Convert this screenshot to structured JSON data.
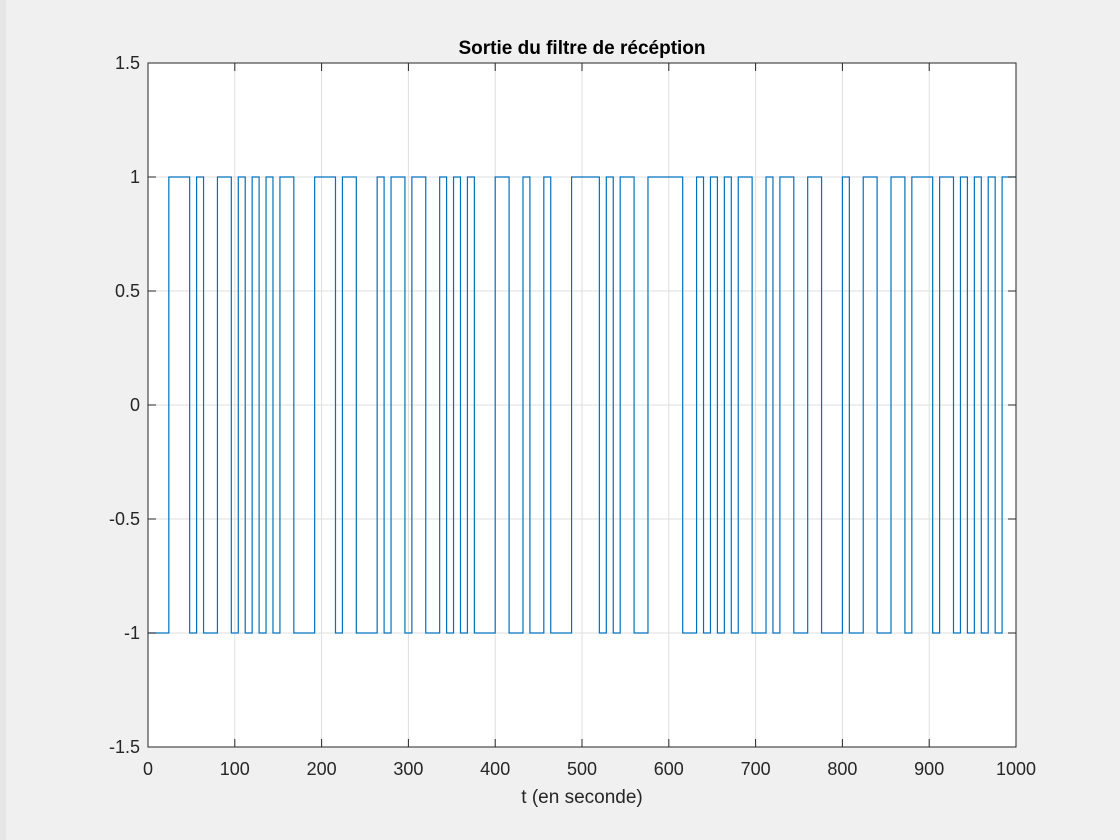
{
  "window": {
    "background": "#f0f0f0"
  },
  "chart_data": {
    "type": "line",
    "step": true,
    "title": "Sortie du filtre de récéption",
    "xlabel": "t (en seconde)",
    "ylabel": "",
    "xlim": [
      0,
      1000
    ],
    "ylim": [
      -1.5,
      1.5
    ],
    "xticks": [
      0,
      100,
      200,
      300,
      400,
      500,
      600,
      700,
      800,
      900,
      1000
    ],
    "yticks": [
      -1.5,
      -1,
      -0.5,
      0,
      0.5,
      1,
      1.5
    ],
    "xtick_labels": [
      "0",
      "100",
      "200",
      "300",
      "400",
      "500",
      "600",
      "700",
      "800",
      "900",
      "1000"
    ],
    "ytick_labels": [
      "-1.5",
      "-1",
      "-0.5",
      "0",
      "0.5",
      "1",
      "1.5"
    ],
    "grid": true,
    "line_color": "#0072bd",
    "series": [
      {
        "x": [
          0,
          24,
          24,
          48,
          48,
          56,
          56,
          64,
          64,
          80,
          80,
          96,
          96,
          104,
          104,
          112,
          112,
          120,
          120,
          128,
          128,
          136,
          136,
          144,
          144,
          152,
          152,
          168,
          168,
          192,
          192,
          216,
          216,
          224,
          224,
          240,
          240,
          264,
          264,
          272,
          272,
          280,
          280,
          296,
          296,
          304,
          304,
          320,
          320,
          336,
          336,
          344,
          344,
          352,
          352,
          360,
          360,
          368,
          368,
          376,
          376,
          400,
          400,
          416,
          416,
          432,
          432,
          440,
          440,
          456,
          456,
          464,
          464,
          488,
          488,
          520,
          520,
          528,
          528,
          536,
          536,
          544,
          544,
          560,
          560,
          576,
          576,
          616,
          616,
          632,
          632,
          640,
          640,
          648,
          648,
          656,
          656,
          664,
          664,
          672,
          672,
          680,
          680,
          696,
          696,
          712,
          712,
          720,
          720,
          728,
          728,
          744,
          744,
          760,
          760,
          776,
          776,
          800,
          800,
          808,
          808,
          824,
          824,
          840,
          840,
          856,
          856,
          872,
          872,
          880,
          880,
          904,
          904,
          912,
          912,
          928,
          928,
          936,
          936,
          944,
          944,
          952,
          952,
          960,
          960,
          968,
          968,
          976,
          976,
          984,
          984,
          1000
        ],
        "y": [
          -1,
          -1,
          1,
          1,
          -1,
          -1,
          1,
          1,
          -1,
          -1,
          1,
          1,
          -1,
          -1,
          1,
          1,
          -1,
          -1,
          1,
          1,
          -1,
          -1,
          1,
          1,
          -1,
          -1,
          1,
          1,
          -1,
          -1,
          1,
          1,
          -1,
          -1,
          1,
          1,
          -1,
          -1,
          1,
          1,
          -1,
          -1,
          1,
          1,
          -1,
          -1,
          1,
          1,
          -1,
          -1,
          1,
          1,
          -1,
          -1,
          1,
          1,
          -1,
          -1,
          1,
          1,
          -1,
          -1,
          1,
          1,
          -1,
          -1,
          1,
          1,
          -1,
          -1,
          1,
          1,
          -1,
          -1,
          1,
          1,
          -1,
          -1,
          1,
          1,
          -1,
          -1,
          1,
          1,
          -1,
          -1,
          1,
          1,
          -1,
          -1,
          1,
          1,
          -1,
          -1,
          1,
          1,
          -1,
          -1,
          1,
          1,
          -1,
          -1,
          1,
          1,
          -1,
          -1,
          1,
          1,
          -1,
          -1,
          1,
          1,
          -1,
          -1,
          1,
          1,
          -1,
          -1,
          1,
          1,
          -1,
          -1,
          1,
          1,
          -1,
          -1,
          1,
          1,
          -1,
          -1,
          1,
          1,
          -1,
          -1,
          1,
          1,
          -1,
          -1,
          1,
          1,
          -1,
          -1,
          1,
          1,
          -1,
          -1,
          1,
          1,
          -1,
          -1,
          1,
          1
        ]
      }
    ]
  }
}
